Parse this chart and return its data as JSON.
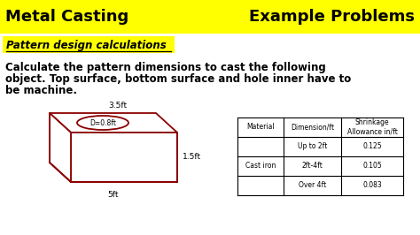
{
  "header_bg": "#FFFF00",
  "header_left": "Metal Casting",
  "header_right": "Example Problems",
  "header_fontsize": 13,
  "subtitle_text": "Pattern design calculations",
  "subtitle_bg": "#FFFF00",
  "body_text_line1": "Calculate the pattern dimensions to cast the following",
  "body_text_line2": "object. Top surface, bottom surface and hole inner have to",
  "body_text_line3": "be machine.",
  "body_fontsize": 8.5,
  "dim_35": "3.5ft",
  "dim_15": "1.5ft",
  "dim_5": "5ft",
  "dim_d": "D=0.8ft",
  "table_header_col1": "Material",
  "table_header_col2": "Dimension/ft",
  "table_header_col3": "Shrinkage\nAllowance in/ft",
  "table_rows": [
    [
      "",
      "Up to 2ft",
      "0.125"
    ],
    [
      "Cast iron",
      "2ft-4ft",
      "0.105"
    ],
    [
      "",
      "Over 4ft",
      "0.083"
    ]
  ],
  "bg_color": "#FFFFFF",
  "shape_color": "#8B0000",
  "text_color": "#000000"
}
